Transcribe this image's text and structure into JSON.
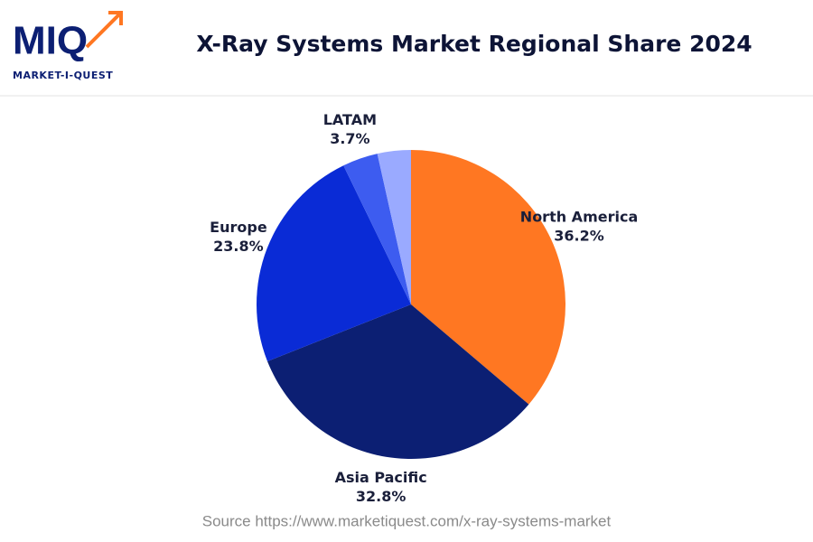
{
  "logo": {
    "mark": "MIQ",
    "name": "MARKET-I-QUEST"
  },
  "chart_data": {
    "type": "pie",
    "title": "X-Ray Systems Market Regional Share 2024",
    "categories": [
      "North America",
      "Asia Pacific",
      "Europe",
      "LATAM",
      null
    ],
    "values": [
      36.2,
      32.8,
      23.8,
      3.7,
      3.5
    ],
    "value_labels": [
      "36.2%",
      "32.8%",
      "23.8%",
      "3.7%",
      null
    ],
    "colors": [
      "#ff7722",
      "#0c1f73",
      "#0a2bd6",
      "#3d5cf0",
      "#9aaaff"
    ],
    "source": "Source https://www.marketiquest.com/x-ray-systems-market"
  }
}
